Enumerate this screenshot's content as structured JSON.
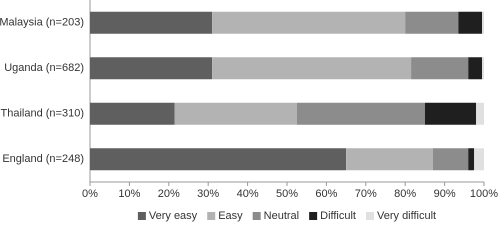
{
  "chart_data": {
    "type": "stacked-bar-horizontal",
    "categories": [
      "Malaysia (n=203)",
      "Uganda (n=682)",
      "Thailand (n=310)",
      "England (n=248)"
    ],
    "series": [
      {
        "name": "Very easy",
        "color": "#5f5f5f",
        "values": [
          31,
          31,
          21.5,
          65
        ]
      },
      {
        "name": "Easy",
        "color": "#b3b3b3",
        "values": [
          49,
          50.5,
          31,
          22
        ]
      },
      {
        "name": "Neutral",
        "color": "#8c8c8c",
        "values": [
          13.5,
          14.5,
          32.5,
          9
        ]
      },
      {
        "name": "Difficult",
        "color": "#1f1f1f",
        "values": [
          6,
          3.5,
          13,
          1.5
        ]
      },
      {
        "name": "Very difficult",
        "color": "#e0e0e0",
        "values": [
          0.5,
          0.5,
          2,
          2.5
        ]
      }
    ],
    "xlim": [
      0,
      100
    ],
    "xticks": [
      {
        "value": 0,
        "label": "0%"
      },
      {
        "value": 10,
        "label": "10%"
      },
      {
        "value": 20,
        "label": "20%"
      },
      {
        "value": 30,
        "label": "30%"
      },
      {
        "value": 40,
        "label": "40%"
      },
      {
        "value": 50,
        "label": "50%"
      },
      {
        "value": 60,
        "label": "60%"
      },
      {
        "value": 70,
        "label": "70%"
      },
      {
        "value": 80,
        "label": "80%"
      },
      {
        "value": 90,
        "label": "90%"
      },
      {
        "value": 100,
        "label": "100%"
      }
    ],
    "legend": "bottom"
  }
}
